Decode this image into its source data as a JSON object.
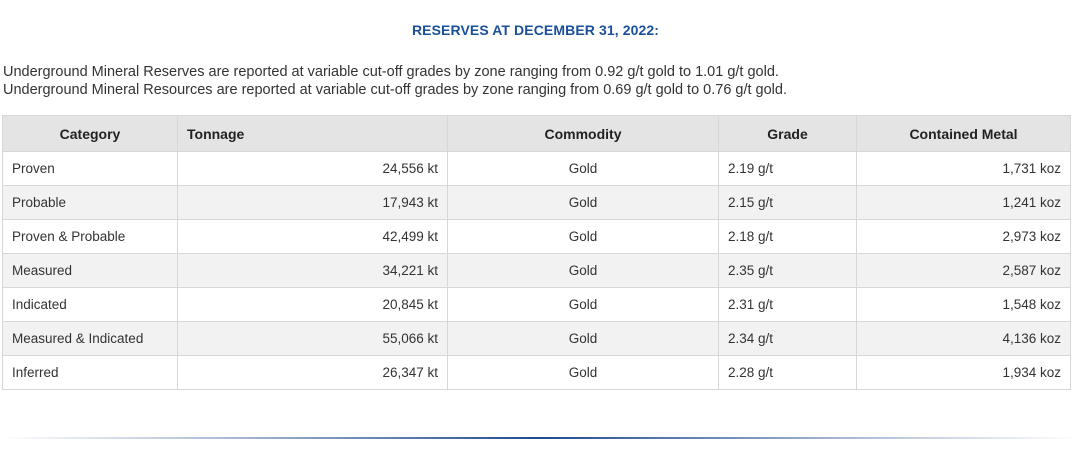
{
  "title": "RESERVES AT DECEMBER 31, 2022:",
  "notes": [
    "Underground Mineral Reserves are reported at variable cut-off grades by zone ranging from 0.92 g/t gold to 1.01 g/t gold.",
    "Underground Mineral Resources are reported at variable cut-off grades by zone ranging from 0.69 g/t gold to 0.76 g/t gold."
  ],
  "table": {
    "headers": [
      "Category",
      "Tonnage",
      "Commodity",
      "Grade",
      "Contained Metal"
    ],
    "rows": [
      [
        "Proven",
        "24,556 kt",
        "Gold",
        "2.19 g/t",
        "1,731 koz"
      ],
      [
        "Probable",
        "17,943 kt",
        "Gold",
        "2.15 g/t",
        "1,241 koz"
      ],
      [
        "Proven & Probable",
        "42,499 kt",
        "Gold",
        "2.18 g/t",
        "2,973 koz"
      ],
      [
        "Measured",
        "34,221 kt",
        "Gold",
        "2.35 g/t",
        "2,587 koz"
      ],
      [
        "Indicated",
        "20,845 kt",
        "Gold",
        "2.31 g/t",
        "1,548 koz"
      ],
      [
        "Measured & Indicated",
        "55,066 kt",
        "Gold",
        "2.34 g/t",
        "4,136 koz"
      ],
      [
        "Inferred",
        "26,347 kt",
        "Gold",
        "2.28 g/t",
        "1,934 koz"
      ]
    ]
  },
  "colors": {
    "title": "#1a4f9c",
    "header_bg": "#e4e4e4",
    "stripe_bg": "#f2f2f2",
    "border": "#d7d7d7"
  }
}
